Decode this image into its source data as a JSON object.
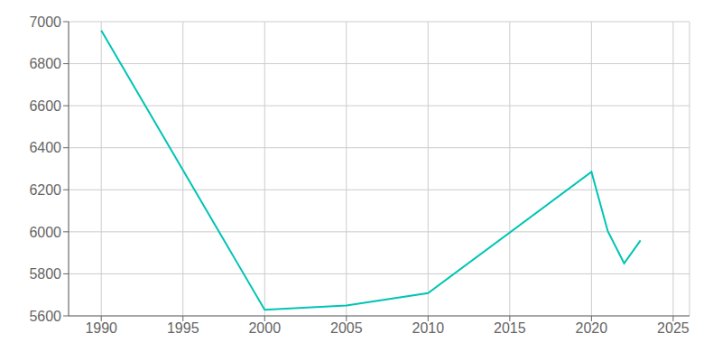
{
  "chart_data": {
    "type": "line",
    "x": [
      1990,
      2000,
      2005,
      2010,
      2020,
      2021,
      2022,
      2023
    ],
    "values": [
      6958,
      5629,
      5649,
      5708,
      6285,
      6003,
      5850,
      5959
    ],
    "color": "#00C4B4",
    "xlim": [
      1988,
      2026
    ],
    "ylim": [
      5600,
      7000
    ],
    "xticks": [
      1990,
      1995,
      2000,
      2005,
      2010,
      2015,
      2020,
      2025
    ],
    "yticks": [
      5600,
      5800,
      6000,
      6200,
      6400,
      6600,
      6800,
      7000
    ],
    "grid": true
  }
}
